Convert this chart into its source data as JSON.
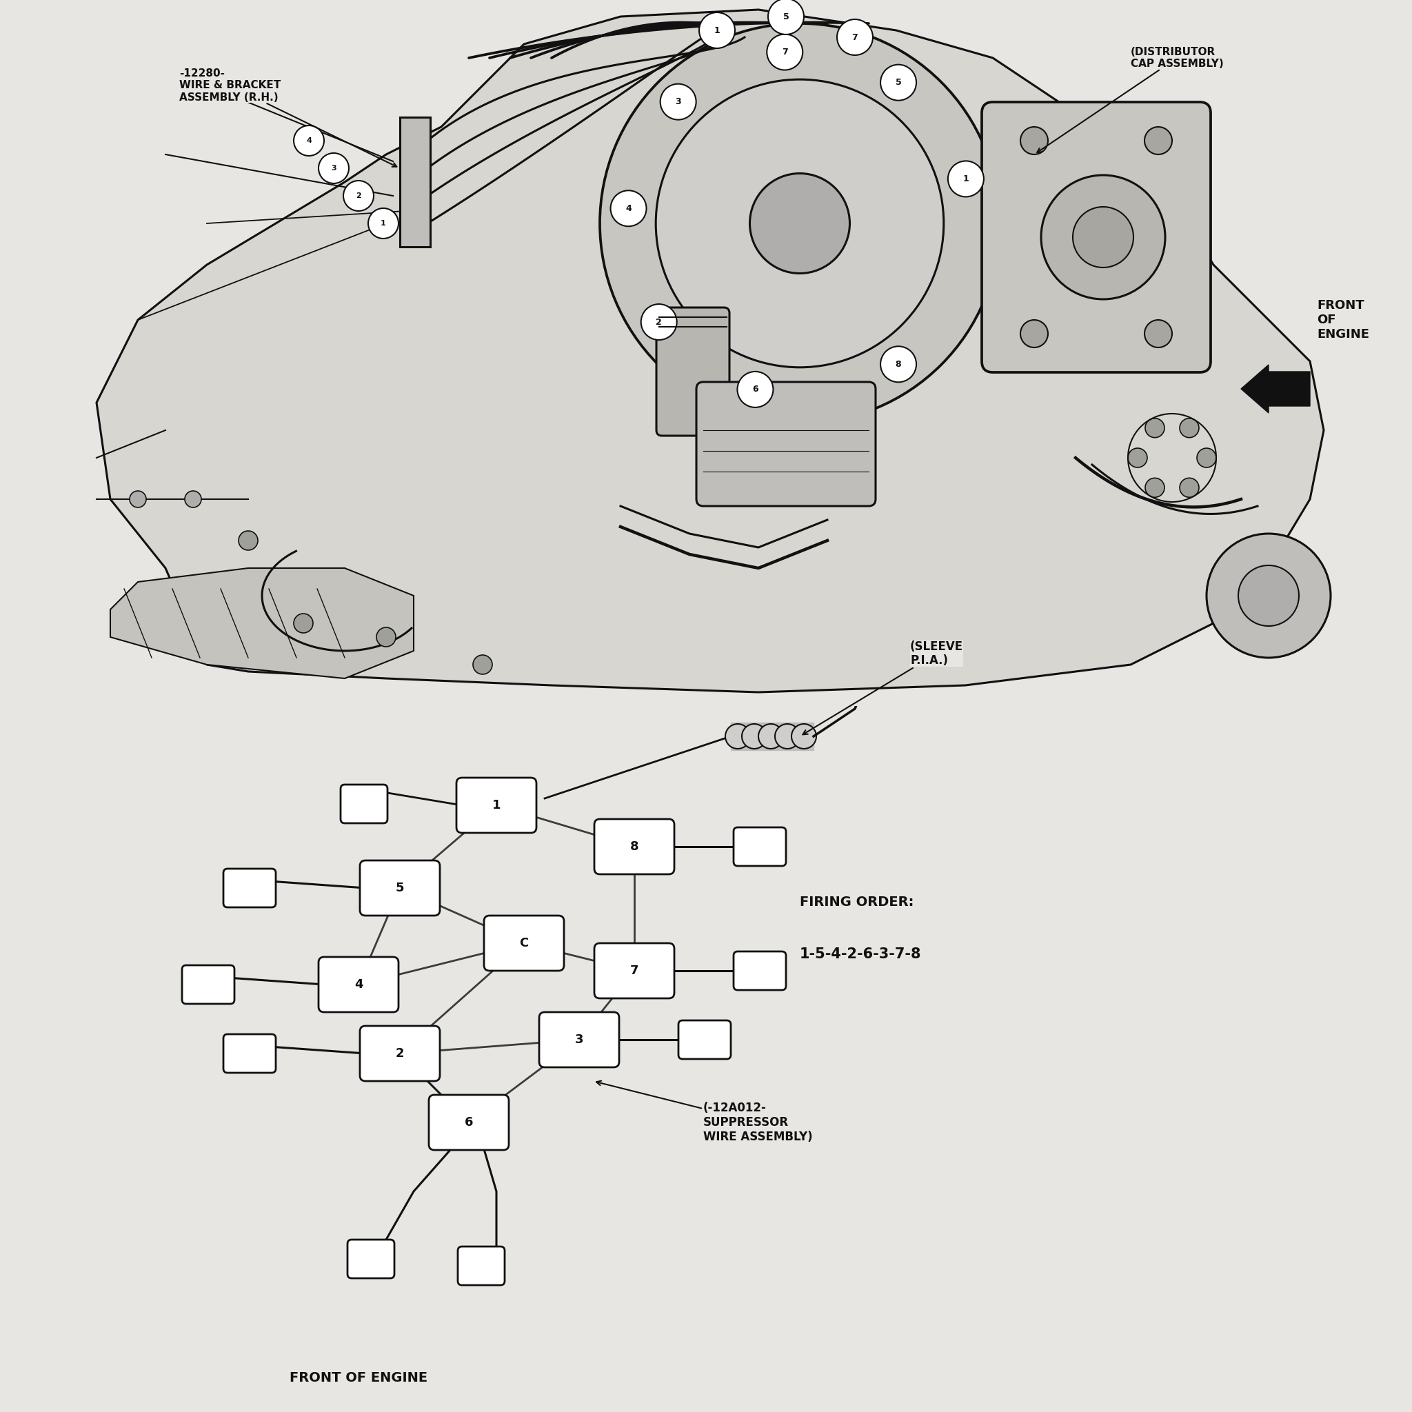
{
  "background_color": "#e8e6e2",
  "line_color": "#111111",
  "fig_bg": "#e8e6e2",
  "top_labels": {
    "wire_bracket": "-12280-\nWIRE & BRACKET\nASSEMBLY (R.H.)",
    "distributor_cap": "(DISTRIBUTOR\nCAP ASSEMBLY)",
    "front_engine": "FRONT\nOF\nENGINE"
  },
  "bottom_labels": {
    "sleeve": "(SLEEVE\nP.I.A.)",
    "firing_order_title": "FIRING ORDER:",
    "firing_order": "1-5-4-2-6-3-7-8",
    "suppressor": "(-12A012-\nSUPPRESSOR\nWIRE ASSEMBLY)",
    "front_engine": "FRONT OF ENGINE"
  },
  "connector_numbers_top": [
    "4",
    "3",
    "2",
    "1"
  ],
  "distributor_numbers": [
    "7",
    "5",
    "1",
    "3",
    "4",
    "2",
    "6",
    "8"
  ],
  "connector_block_numbers": [
    "1",
    "8",
    "5",
    "C",
    "4",
    "7",
    "2",
    "3",
    "6"
  ]
}
